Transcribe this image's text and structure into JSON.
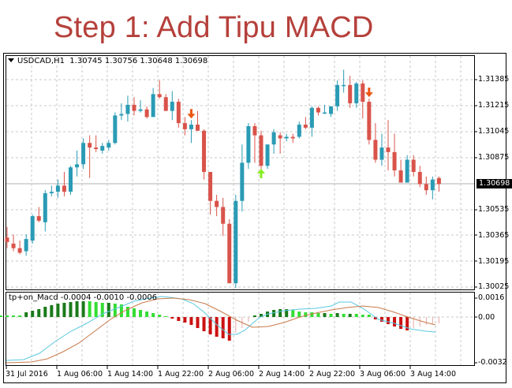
{
  "title": "Step 1: Add Tipu MACD",
  "chart_header": {
    "symbol": "USDCAD,H1",
    "open": "1.30745",
    "high": "1.30756",
    "low": "1.30648",
    "close": "1.30698",
    "text": "USDCAD,H1  1.30745 1.30756 1.30648 1.30698"
  },
  "price_axis": {
    "labels": [
      "1.31385",
      "1.31215",
      "1.31045",
      "1.30875",
      "1.30535",
      "1.30365",
      "1.30195",
      "1.30025"
    ],
    "current_price": "1.30698"
  },
  "macd": {
    "label": "tp+on_Macd -0.0004 -0.0010 -0.0006",
    "axis_labels": [
      "0.0016",
      "0.00",
      "-0.0032"
    ]
  },
  "time_axis": {
    "labels": [
      "31 Jul 2016",
      "1 Aug 06:00",
      "1 Aug 14:00",
      "1 Aug 22:00",
      "2 Aug 06:00",
      "2 Aug 14:00",
      "2 Aug 22:00",
      "3 Aug 06:00",
      "3 Aug 14:00"
    ]
  },
  "colors": {
    "title": "#b5403b",
    "bull": "#2a9bb5",
    "bear": "#d9534a",
    "hist_dark_green": "#1a7a1a",
    "hist_light_green": "#33dd33",
    "hist_red": "#cc1111",
    "hist_pale_red": "#e8a8a8",
    "macd_line": "#5bc8e0",
    "signal_line": "#c87a4a",
    "sell_arrow": "#ee5511",
    "buy_arrow": "#88ee22"
  },
  "chart_data": {
    "type": "candlestick",
    "title": "USDCAD,H1",
    "ylim": [
      1.30025,
      1.31385
    ],
    "candles": [
      [
        1.3035,
        1.3042,
        1.3028,
        1.3032
      ],
      [
        1.3031,
        1.3037,
        1.3026,
        1.3028
      ],
      [
        1.3028,
        1.3033,
        1.3024,
        1.3025
      ],
      [
        1.3026,
        1.3037,
        1.3023,
        1.3034
      ],
      [
        1.3033,
        1.305,
        1.3031,
        1.3049
      ],
      [
        1.3049,
        1.3055,
        1.3045,
        1.3046
      ],
      [
        1.3045,
        1.3066,
        1.3039,
        1.3064
      ],
      [
        1.3064,
        1.3069,
        1.3062,
        1.3065
      ],
      [
        1.3065,
        1.3073,
        1.3061,
        1.3069
      ],
      [
        1.3069,
        1.3078,
        1.3062,
        1.3065
      ],
      [
        1.3065,
        1.3082,
        1.3063,
        1.3081
      ],
      [
        1.3081,
        1.3092,
        1.3075,
        1.3083
      ],
      [
        1.3083,
        1.31,
        1.308,
        1.3097
      ],
      [
        1.3097,
        1.3102,
        1.3074,
        1.3094
      ],
      [
        1.3094,
        1.3102,
        1.3091,
        1.3093
      ],
      [
        1.3092,
        1.3097,
        1.309,
        1.3095
      ],
      [
        1.3094,
        1.3099,
        1.3092,
        1.3097
      ],
      [
        1.3097,
        1.3117,
        1.3096,
        1.3115
      ],
      [
        1.3115,
        1.3123,
        1.3112,
        1.3116
      ],
      [
        1.3116,
        1.3128,
        1.3111,
        1.3122
      ],
      [
        1.3122,
        1.3127,
        1.3115,
        1.3118
      ],
      [
        1.3118,
        1.3125,
        1.3117,
        1.3119
      ],
      [
        1.3119,
        1.3121,
        1.3113,
        1.3114
      ],
      [
        1.3114,
        1.3133,
        1.3114,
        1.3129
      ],
      [
        1.3129,
        1.3138,
        1.3126,
        1.3127
      ],
      [
        1.3127,
        1.3129,
        1.3118,
        1.3118
      ],
      [
        1.3118,
        1.3131,
        1.3112,
        1.3124
      ],
      [
        1.3124,
        1.3126,
        1.3107,
        1.311
      ],
      [
        1.311,
        1.3114,
        1.3102,
        1.3106
      ],
      [
        1.3106,
        1.3112,
        1.3097,
        1.3109
      ],
      [
        1.3109,
        1.3118,
        1.3105,
        1.3105
      ],
      [
        1.3105,
        1.3106,
        1.3073,
        1.3078
      ],
      [
        1.3078,
        1.3078,
        1.305,
        1.3059
      ],
      [
        1.3059,
        1.3063,
        1.3049,
        1.3055
      ],
      [
        1.3055,
        1.3061,
        1.3036,
        1.3044
      ],
      [
        1.3044,
        1.3047,
        1.3005,
        1.3005
      ],
      [
        1.3005,
        1.3063,
        1.3002,
        1.3059
      ],
      [
        1.3059,
        1.3096,
        1.3052,
        1.3084
      ],
      [
        1.3084,
        1.311,
        1.308,
        1.3108
      ],
      [
        1.3108,
        1.311,
        1.3084,
        1.3102
      ],
      [
        1.3102,
        1.3105,
        1.3078,
        1.3082
      ],
      [
        1.3082,
        1.3096,
        1.308,
        1.3096
      ],
      [
        1.3096,
        1.3106,
        1.309,
        1.3104
      ],
      [
        1.3102,
        1.3104,
        1.309,
        1.31
      ],
      [
        1.31,
        1.3103,
        1.3098,
        1.3101
      ],
      [
        1.3101,
        1.3103,
        1.3097,
        1.31
      ],
      [
        1.3101,
        1.3111,
        1.31,
        1.3109
      ],
      [
        1.3109,
        1.3114,
        1.3106,
        1.3107
      ],
      [
        1.3107,
        1.3121,
        1.3101,
        1.312
      ],
      [
        1.312,
        1.3121,
        1.3115,
        1.3117
      ],
      [
        1.3117,
        1.3122,
        1.3116,
        1.3117
      ],
      [
        1.3116,
        1.3121,
        1.3114,
        1.3121
      ],
      [
        1.3121,
        1.3138,
        1.3118,
        1.3135
      ],
      [
        1.3135,
        1.3145,
        1.313,
        1.3135
      ],
      [
        1.3135,
        1.3141,
        1.312,
        1.3123
      ],
      [
        1.3123,
        1.3137,
        1.312,
        1.3136
      ],
      [
        1.3136,
        1.3138,
        1.3113,
        1.3124
      ],
      [
        1.3124,
        1.3126,
        1.3096,
        1.3099
      ],
      [
        1.3099,
        1.311,
        1.3084,
        1.3086
      ],
      [
        1.3086,
        1.3103,
        1.3082,
        1.3094
      ],
      [
        1.3094,
        1.3112,
        1.3079,
        1.3091
      ],
      [
        1.3091,
        1.3103,
        1.3075,
        1.3079
      ],
      [
        1.3079,
        1.3086,
        1.3074,
        1.3071
      ],
      [
        1.3071,
        1.3089,
        1.3071,
        1.3086
      ],
      [
        1.3086,
        1.3089,
        1.3075,
        1.3078
      ],
      [
        1.3078,
        1.3082,
        1.3068,
        1.307
      ],
      [
        1.307,
        1.3075,
        1.3063,
        1.3066
      ],
      [
        1.3066,
        1.3075,
        1.306,
        1.3073
      ],
      [
        1.3074,
        1.3075,
        1.3065,
        1.307
      ]
    ],
    "signals": [
      {
        "type": "sell",
        "index": 29
      },
      {
        "type": "buy",
        "index": 40
      },
      {
        "type": "sell",
        "index": 57
      }
    ],
    "macd_ylim": [
      -0.0032,
      0.0016
    ],
    "macd_last": {
      "main": -0.0004,
      "signal": -0.001,
      "hist": -0.0006
    }
  }
}
